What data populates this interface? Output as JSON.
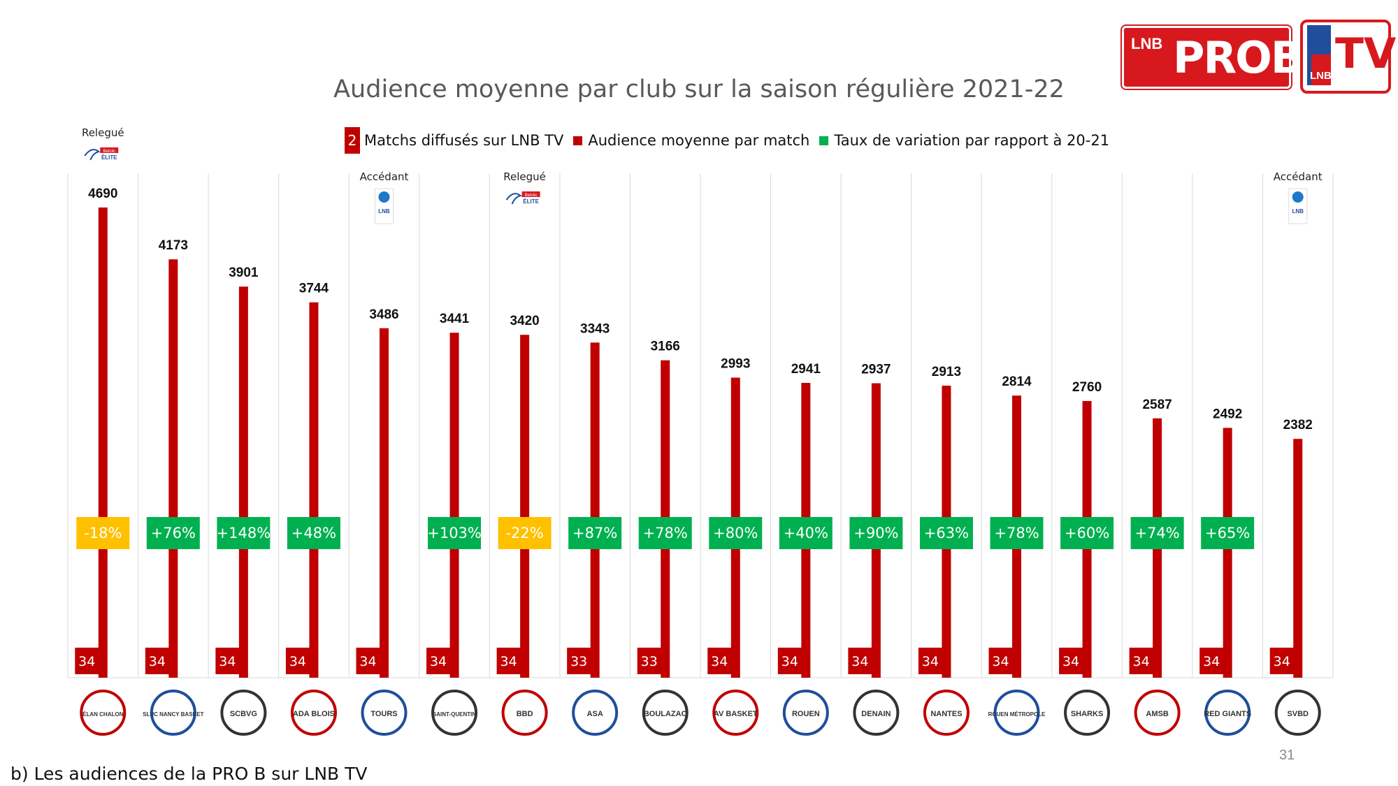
{
  "header": {
    "title": "Audience moyenne par club sur la saison régulière 2021-22",
    "logo_prob": {
      "lnb": "LNB",
      "prob": "PROB"
    },
    "logo_tv": {
      "tv": "TV",
      "lnb": "LNB"
    }
  },
  "legend": {
    "badge_value": "2",
    "matches_label": "Matchs diffusés sur LNB TV",
    "audience_label": "Audience moyenne par match",
    "variation_label": "Taux de variation par rapport à 20-21"
  },
  "footer": {
    "caption": "b) Les audiences de la PRO B sur LNB TV",
    "page_number": "31"
  },
  "colors": {
    "bar": "#c00000",
    "positive": "#00b050",
    "negative": "#ffc000",
    "grid": "#d9d9d9"
  },
  "chart_data": {
    "type": "bar",
    "title": "Audience moyenne par club sur la saison régulière 2021-22",
    "series_name": "Audience moyenne par match",
    "ylim": [
      0,
      5200
    ],
    "grid": true,
    "legend_position": "top",
    "clubs": [
      {
        "logo_text": "ÉLAN CHALON",
        "value": 4690,
        "matches": "34",
        "variation": "-18%",
        "status": "Relegué",
        "status_logo": "Betclic ÉLITE"
      },
      {
        "logo_text": "SLUC NANCY BASKET",
        "value": 4173,
        "matches": "34",
        "variation": "+76%"
      },
      {
        "logo_text": "SCBVG",
        "value": 3901,
        "matches": "34",
        "variation": "+148%"
      },
      {
        "logo_text": "ADA BLOIS",
        "value": 3744,
        "matches": "34",
        "variation": "+48%"
      },
      {
        "logo_text": "TOURS",
        "value": 3486,
        "matches": "34",
        "variation": null,
        "status": "Accédant",
        "status_logo": "LNB"
      },
      {
        "logo_text": "SAINT-QUENTIN",
        "value": 3441,
        "matches": "34",
        "variation": "+103%"
      },
      {
        "logo_text": "BBD",
        "value": 3420,
        "matches": "34",
        "variation": "-22%",
        "status": "Relegué",
        "status_logo": "Betclic ÉLITE"
      },
      {
        "logo_text": "ASA",
        "value": 3343,
        "matches": "33",
        "variation": "+87%"
      },
      {
        "logo_text": "BOULAZAC",
        "value": 3166,
        "matches": "33",
        "variation": "+78%"
      },
      {
        "logo_text": "AV BASKET",
        "value": 2993,
        "matches": "34",
        "variation": "+80%"
      },
      {
        "logo_text": "ROUEN",
        "value": 2941,
        "matches": "34",
        "variation": "+40%"
      },
      {
        "logo_text": "DENAIN",
        "value": 2937,
        "matches": "34",
        "variation": "+90%"
      },
      {
        "logo_text": "NANTES",
        "value": 2913,
        "matches": "34",
        "variation": "+63%"
      },
      {
        "logo_text": "ROUEN MÉTROPOLE",
        "value": 2814,
        "matches": "34",
        "variation": "+78%"
      },
      {
        "logo_text": "SHARKS",
        "value": 2760,
        "matches": "34",
        "variation": "+60%"
      },
      {
        "logo_text": "AMSB",
        "value": 2587,
        "matches": "34",
        "variation": "+74%"
      },
      {
        "logo_text": "RED GIANTS",
        "value": 2492,
        "matches": "34",
        "variation": "+65%"
      },
      {
        "logo_text": "SVBD",
        "value": 2382,
        "matches": "34",
        "variation": null,
        "status": "Accédant",
        "status_logo": "LNB"
      }
    ]
  }
}
